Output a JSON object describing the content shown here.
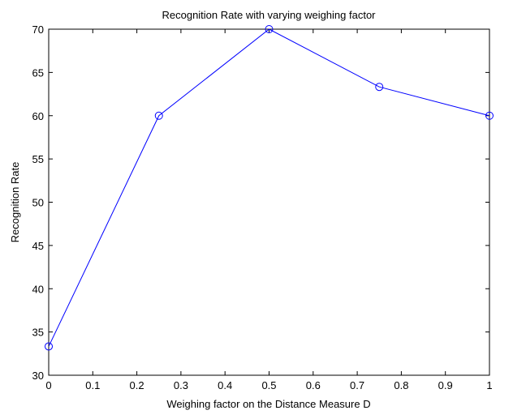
{
  "chart_data": {
    "type": "line",
    "title": "Recognition Rate with varying weighing factor",
    "xlabel": "Weighing factor on the Distance Measure D",
    "ylabel": "Recognition Rate",
    "xlim": [
      0,
      1
    ],
    "ylim": [
      30,
      70
    ],
    "xticks": [
      0,
      0.1,
      0.2,
      0.3,
      0.4,
      0.5,
      0.6,
      0.7,
      0.8,
      0.9,
      1
    ],
    "xtick_labels": [
      "0",
      "0.1",
      "0.2",
      "0.3",
      "0.4",
      "0.5",
      "0.6",
      "0.7",
      "0.8",
      "0.9",
      "1"
    ],
    "yticks": [
      30,
      35,
      40,
      45,
      50,
      55,
      60,
      65,
      70
    ],
    "ytick_labels": [
      "30",
      "35",
      "40",
      "45",
      "50",
      "55",
      "60",
      "65",
      "70"
    ],
    "grid": false,
    "series": [
      {
        "x": [
          0,
          0.25,
          0.5,
          0.75,
          1
        ],
        "values": [
          33.33,
          60,
          70,
          63.33,
          60
        ],
        "color": "#0000ff",
        "marker": "circle"
      }
    ]
  }
}
